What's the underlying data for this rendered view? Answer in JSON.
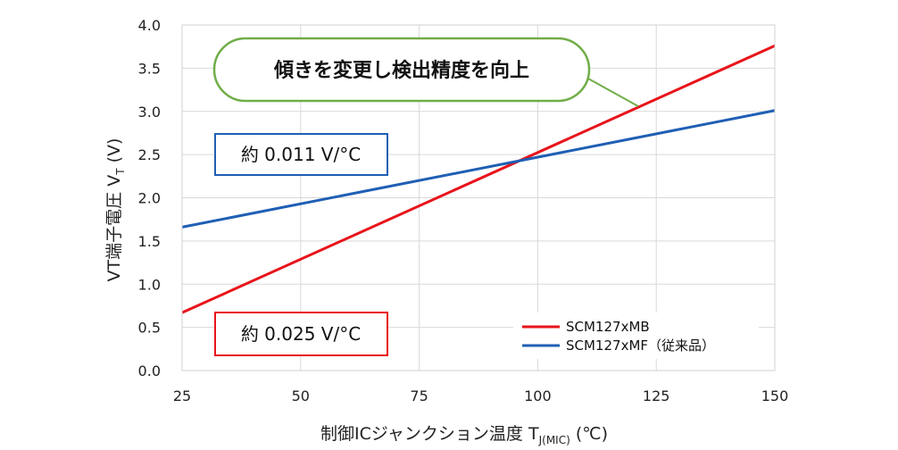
{
  "chart_data": {
    "type": "line",
    "x": [
      25,
      150
    ],
    "series": [
      {
        "name": "SCM127xMB",
        "values": [
          0.67,
          3.76
        ],
        "color": "#e8141b"
      },
      {
        "name": "SCM127xMF（従来品）",
        "values": [
          1.66,
          3.01
        ],
        "color": "#1f5fb4"
      }
    ],
    "xticks": [
      "25",
      "50",
      "75",
      "100",
      "125",
      "150"
    ],
    "yticks": [
      "0.0",
      "0.5",
      "1.0",
      "1.5",
      "2.0",
      "2.5",
      "3.0",
      "3.5",
      "4.0"
    ],
    "xlim": [
      25,
      150
    ],
    "ylim": [
      0,
      4
    ],
    "grid": true,
    "legend_position": "bottom-right",
    "xlabel": {
      "main": "制御ICジャンクション温度 T",
      "sub": "J(MIC)",
      "unit": " (℃)"
    },
    "ylabel": {
      "main": "VT端子電圧 V",
      "sub": "T",
      "unit": " (V)"
    },
    "annotations": {
      "callout": "傾きを変更し検出精度を向上",
      "slope_old": "約 0.011 V/°C",
      "slope_new": "約 0.025 V/°C"
    }
  }
}
